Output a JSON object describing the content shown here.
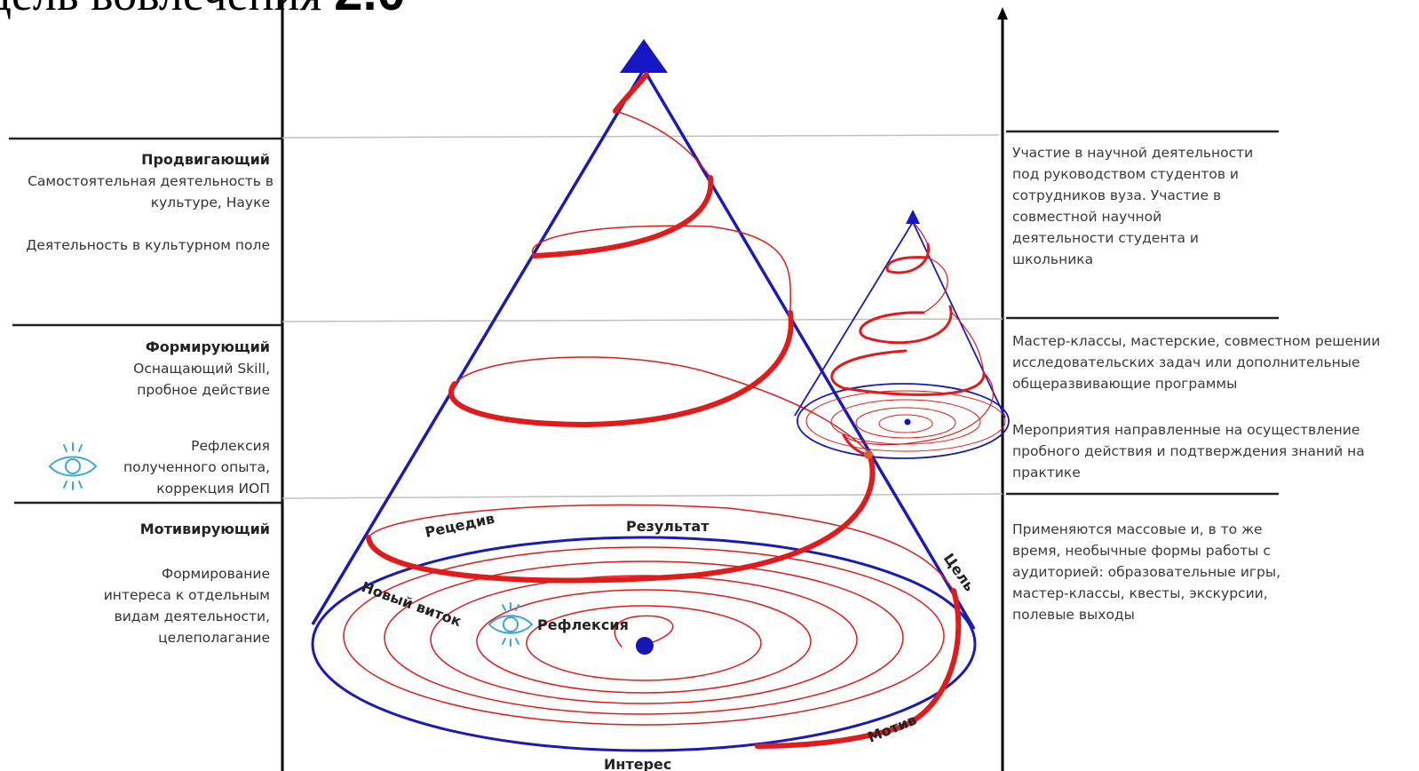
{
  "title": {
    "part1": "одель вовлечения",
    "part2": "2.0"
  },
  "left": {
    "promoting": {
      "heading": "Продвигающий",
      "line1": "Самостоятельная деятельность в",
      "line2": "культуре, Науке",
      "line3": "Деятельность в культурном поле"
    },
    "forming": {
      "heading": "Формирующий",
      "line1": "Оснащающий Skill,",
      "line2": "пробное действие",
      "reflection1": "Рефлексия",
      "reflection2": "полученного опыта,",
      "reflection3": "коррекция ИОП"
    },
    "motivating": {
      "heading": "Мотивирующий",
      "line1": "Формирование",
      "line2": "интереса к отдельным",
      "line3": "видам деятельности,",
      "line4": "целеполагание"
    }
  },
  "right": {
    "top": [
      "Участие в научной деятельности",
      "под руководством студентов и",
      "сотрудников вуза. Участие в",
      "совместной научной",
      "деятельности студента и",
      "школьника"
    ],
    "middle1": [
      "Мастер-классы, мастерские, совместном решении",
      "исследовательских задач или дополнительные",
      "общеразвивающие программы"
    ],
    "middle2": [
      "Мероприятия направленные на осуществление",
      "пробного действия и подтверждения знаний на",
      "практике"
    ],
    "bottom": [
      "Применяются массовые и, в то же",
      "время, необычные формы работы с",
      "аудиторией: образовательные игры,",
      "мастер-классы, квесты, экскурсии,",
      "полевые выходы"
    ]
  },
  "diagram": {
    "recidive": "Рецедив",
    "result": "Результат",
    "goal": "Цель",
    "new_turn": "Новый виток",
    "reflection": "Рефлексия",
    "motive": "Мотив",
    "interest": "Интерес"
  },
  "colors": {
    "cone": "#1a1ab4",
    "spiral": "#e01b1b",
    "eye": "#3aa7d6",
    "divider": "#c0c0c0"
  },
  "icons": [
    "eye-icon",
    "arrow-up-icon"
  ]
}
